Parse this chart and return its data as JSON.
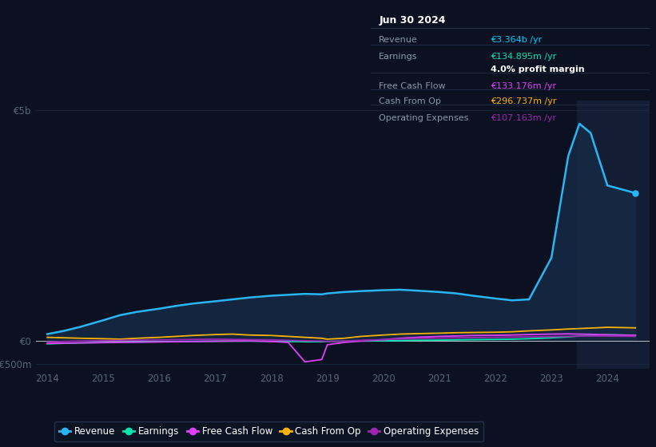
{
  "bg_color": "#0b1120",
  "plot_bg_color": "#0b1120",
  "grid_color": "#1a2a40",
  "title_box": {
    "date": "Jun 30 2024",
    "rows": [
      {
        "label": "Revenue",
        "value": "€3.364b /yr",
        "value_color": "#00cfff"
      },
      {
        "label": "Earnings",
        "value": "€134.895m /yr",
        "value_color": "#00e5b0"
      },
      {
        "label": "",
        "value": "4.0% profit margin",
        "value_color": "#ffffff"
      },
      {
        "label": "Free Cash Flow",
        "value": "€133.176m /yr",
        "value_color": "#e040fb"
      },
      {
        "label": "Cash From Op",
        "value": "€296.737m /yr",
        "value_color": "#ffb300"
      },
      {
        "label": "Operating Expenses",
        "value": "€107.163m /yr",
        "value_color": "#9c27b0"
      }
    ]
  },
  "years": [
    2014,
    2014.3,
    2014.6,
    2015,
    2015.3,
    2015.6,
    2016,
    2016.3,
    2016.6,
    2017,
    2017.3,
    2017.6,
    2018,
    2018.3,
    2018.6,
    2018.9,
    2019,
    2019.3,
    2019.6,
    2020,
    2020.3,
    2020.6,
    2021,
    2021.3,
    2021.6,
    2022,
    2022.3,
    2022.6,
    2023,
    2023.3,
    2023.5,
    2023.7,
    2024,
    2024.5
  ],
  "revenue": [
    150,
    220,
    310,
    450,
    560,
    630,
    700,
    760,
    810,
    860,
    900,
    940,
    980,
    1000,
    1020,
    1010,
    1030,
    1060,
    1080,
    1100,
    1110,
    1090,
    1060,
    1030,
    980,
    920,
    880,
    900,
    1800,
    4000,
    4700,
    4500,
    3364,
    3200
  ],
  "earnings": [
    -60,
    -50,
    -40,
    -30,
    -25,
    -20,
    -15,
    -10,
    -8,
    -5,
    -3,
    -2,
    -5,
    -10,
    -15,
    -15,
    -10,
    -5,
    0,
    5,
    10,
    15,
    20,
    25,
    30,
    35,
    40,
    50,
    70,
    90,
    110,
    120,
    135,
    125
  ],
  "free_cash_flow": [
    -50,
    -45,
    -40,
    -35,
    -30,
    -25,
    -20,
    -15,
    -10,
    -5,
    0,
    5,
    -10,
    -30,
    -450,
    -400,
    -80,
    -30,
    0,
    30,
    60,
    80,
    100,
    110,
    120,
    125,
    130,
    140,
    150,
    155,
    150,
    145,
    133,
    125
  ],
  "cash_from_op": [
    80,
    70,
    60,
    50,
    40,
    60,
    80,
    100,
    120,
    140,
    150,
    130,
    120,
    100,
    80,
    60,
    40,
    60,
    100,
    130,
    150,
    160,
    170,
    180,
    185,
    190,
    200,
    220,
    240,
    260,
    270,
    280,
    297,
    285
  ],
  "operating_expenses": [
    -20,
    -10,
    0,
    10,
    15,
    20,
    25,
    30,
    35,
    40,
    35,
    30,
    25,
    15,
    5,
    0,
    -10,
    0,
    15,
    30,
    45,
    55,
    65,
    70,
    75,
    80,
    85,
    90,
    95,
    100,
    105,
    108,
    107,
    100
  ],
  "revenue_color": "#29b6f6",
  "earnings_color": "#00e5b0",
  "free_cash_flow_color": "#e040fb",
  "cash_from_op_color": "#ffb300",
  "operating_expenses_color": "#9c27b0",
  "revenue_fill_color": "#162a45",
  "ylim_min": -600,
  "ylim_max": 5200,
  "ytick_vals": [
    -500,
    0,
    5000
  ],
  "ytick_labels": [
    "-€500m",
    "€0",
    "€5b"
  ],
  "xticks": [
    2014,
    2015,
    2016,
    2017,
    2018,
    2019,
    2020,
    2021,
    2022,
    2023,
    2024
  ],
  "xlabel_color": "#556677",
  "ylabel_color": "#556677",
  "highlight_x_start": 2023.45,
  "highlight_color": "#131e35",
  "legend_items": [
    {
      "label": "Revenue",
      "color": "#29b6f6"
    },
    {
      "label": "Earnings",
      "color": "#00e5b0"
    },
    {
      "label": "Free Cash Flow",
      "color": "#e040fb"
    },
    {
      "label": "Cash From Op",
      "color": "#ffb300"
    },
    {
      "label": "Operating Expenses",
      "color": "#9c27b0"
    }
  ]
}
